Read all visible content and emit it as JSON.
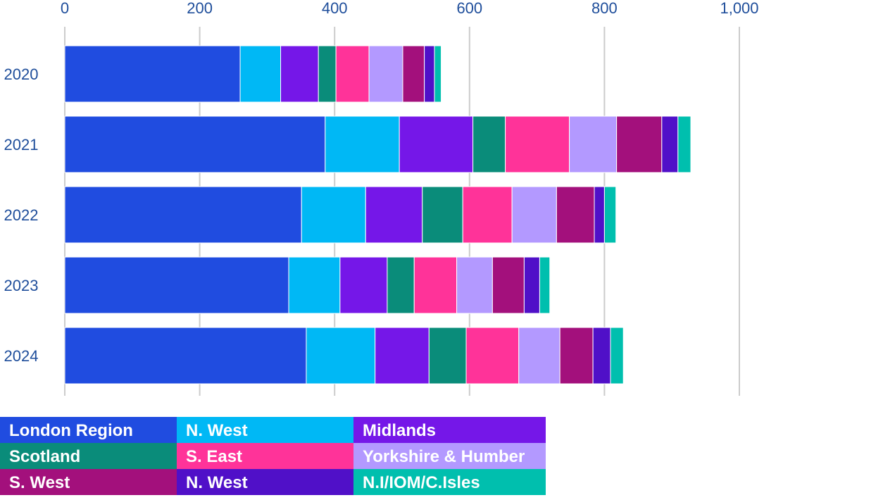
{
  "chart_data": {
    "type": "stacked-bar-horizontal",
    "categories": [
      "2020",
      "2021",
      "2022",
      "2023",
      "2024"
    ],
    "series": [
      {
        "name": "London Region",
        "color": "#204ce0",
        "values": [
          260,
          386,
          351,
          332,
          358
        ]
      },
      {
        "name": "N. West",
        "color": "#00b8f5",
        "values": [
          60,
          110,
          95,
          76,
          102
        ]
      },
      {
        "name": "Midlands",
        "color": "#7517e8",
        "values": [
          56,
          109,
          84,
          70,
          80
        ]
      },
      {
        "name": "Scotland",
        "color": "#0a8c7a",
        "values": [
          26,
          48,
          60,
          40,
          55
        ]
      },
      {
        "name": "S. East",
        "color": "#ff3399",
        "values": [
          49,
          95,
          73,
          63,
          78
        ]
      },
      {
        "name": "Yorkshire & Humber",
        "color": "#b399ff",
        "values": [
          50,
          70,
          66,
          53,
          61
        ]
      },
      {
        "name": "S. West",
        "color": "#a3107c",
        "values": [
          32,
          67,
          56,
          47,
          49
        ]
      },
      {
        "name": "N. West",
        "color": "#5010c8",
        "values": [
          15,
          24,
          15,
          23,
          26
        ]
      },
      {
        "name": "N.I/IOM/C.Isles",
        "color": "#00bfae",
        "values": [
          10,
          19,
          17,
          15,
          19
        ]
      }
    ],
    "xlim": [
      0,
      1000
    ],
    "xticks": [
      0,
      200,
      400,
      600,
      800,
      {
        "value": 1000,
        "label": "1,000"
      }
    ],
    "grid": true
  }
}
